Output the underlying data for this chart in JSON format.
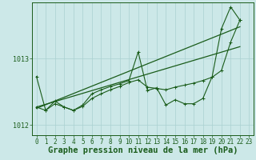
{
  "main_x": [
    0,
    1,
    2,
    3,
    4,
    5,
    6,
    7,
    8,
    9,
    10,
    11,
    12,
    13,
    14,
    15,
    16,
    17,
    18,
    19,
    20,
    21,
    22
  ],
  "main_y": [
    1012.73,
    1012.22,
    1012.36,
    1012.27,
    1012.22,
    1012.3,
    1012.47,
    1012.53,
    1012.58,
    1012.62,
    1012.67,
    1013.1,
    1012.52,
    1012.56,
    1012.3,
    1012.38,
    1012.32,
    1012.32,
    1012.4,
    1012.73,
    1013.45,
    1013.78,
    1013.58
  ],
  "line2_x": [
    0,
    1,
    2,
    3,
    4,
    5,
    6,
    7,
    8,
    9,
    10,
    11,
    12,
    13,
    14,
    15,
    16,
    17,
    18,
    19,
    20,
    21,
    22
  ],
  "line2_y": [
    1012.27,
    1012.22,
    1012.32,
    1012.27,
    1012.22,
    1012.28,
    1012.4,
    1012.47,
    1012.53,
    1012.58,
    1012.64,
    1012.68,
    1012.57,
    1012.55,
    1012.53,
    1012.57,
    1012.6,
    1012.63,
    1012.67,
    1012.72,
    1012.82,
    1013.25,
    1013.58
  ],
  "trend1_x": [
    0,
    22
  ],
  "trend1_y": [
    1012.25,
    1013.48
  ],
  "trend2_x": [
    0,
    22
  ],
  "trend2_y": [
    1012.27,
    1013.18
  ],
  "ylim": [
    1011.85,
    1013.85
  ],
  "yticks": [
    1012.0,
    1013.0
  ],
  "xlim": [
    -0.5,
    23.5
  ],
  "xticks": [
    0,
    1,
    2,
    3,
    4,
    5,
    6,
    7,
    8,
    9,
    10,
    11,
    12,
    13,
    14,
    15,
    16,
    17,
    18,
    19,
    20,
    21,
    22,
    23
  ],
  "background_color": "#cce8e8",
  "grid_color": "#aad0d0",
  "line_color": "#1a5c1a",
  "xlabel": "Graphe pression niveau de la mer (hPa)",
  "xlabel_fontsize": 7.5,
  "tick_fontsize": 5.5
}
